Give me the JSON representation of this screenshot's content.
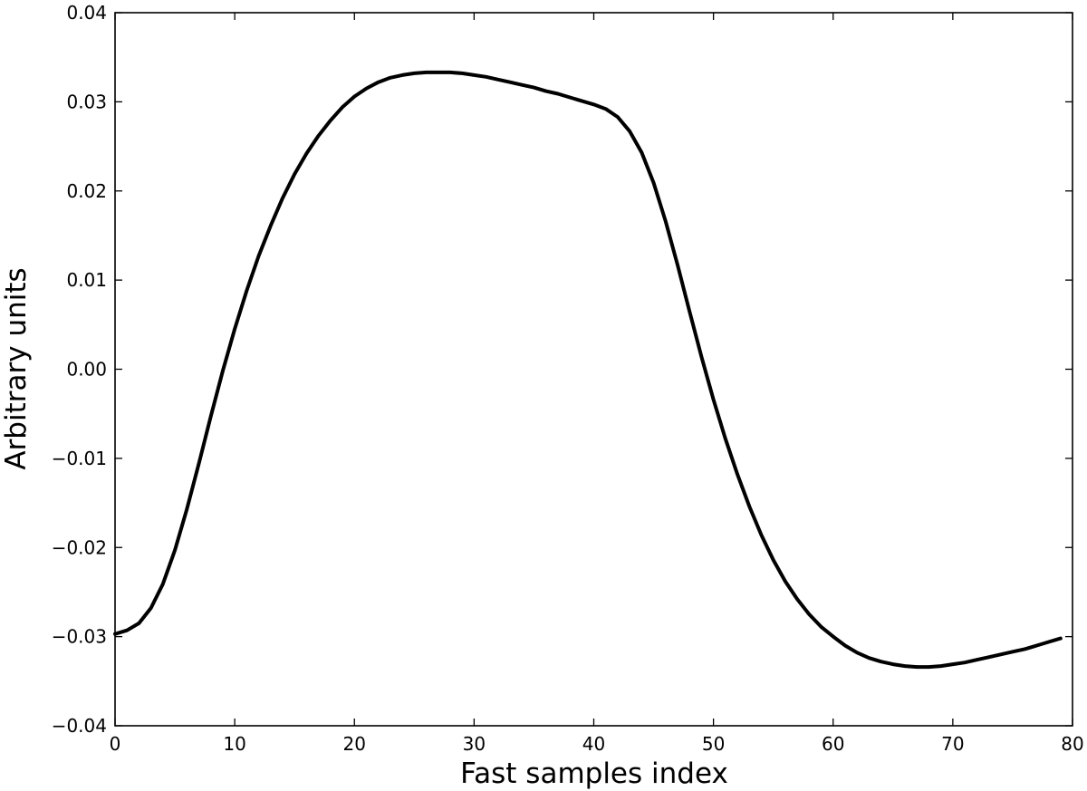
{
  "chart_data": {
    "type": "line",
    "title": "",
    "xlabel": "Fast samples index",
    "ylabel": "Arbitrary units",
    "xlim": [
      0,
      80
    ],
    "ylim": [
      -0.04,
      0.04
    ],
    "xticks": [
      "0",
      "10",
      "20",
      "30",
      "40",
      "50",
      "60",
      "70",
      "80"
    ],
    "yticks": [
      "−0.04",
      "−0.03",
      "−0.02",
      "−0.01",
      "0.00",
      "0.01",
      "0.02",
      "0.03",
      "0.04"
    ],
    "grid": false,
    "legend": "none",
    "series": [
      {
        "color": "#000000",
        "x": [
          0,
          1,
          2,
          3,
          4,
          5,
          6,
          7,
          8,
          9,
          10,
          11,
          12,
          13,
          14,
          15,
          16,
          17,
          18,
          19,
          20,
          21,
          22,
          23,
          24,
          25,
          26,
          27,
          28,
          29,
          30,
          31,
          32,
          33,
          34,
          35,
          36,
          37,
          38,
          39,
          40,
          41,
          42,
          43,
          44,
          45,
          46,
          47,
          48,
          49,
          50,
          51,
          52,
          53,
          54,
          55,
          56,
          57,
          58,
          59,
          60,
          61,
          62,
          63,
          64,
          65,
          66,
          67,
          68,
          69,
          70,
          71,
          72,
          73,
          74,
          75,
          76,
          77,
          78,
          79
        ],
        "y": [
          -0.0297,
          -0.0293,
          -0.0285,
          -0.0268,
          -0.0241,
          -0.0203,
          -0.0157,
          -0.0106,
          -0.0053,
          -0.0002,
          0.0045,
          0.0088,
          0.0127,
          0.0161,
          0.0192,
          0.0219,
          0.0242,
          0.0262,
          0.0279,
          0.0294,
          0.0306,
          0.0315,
          0.0322,
          0.0327,
          0.033,
          0.0332,
          0.0333,
          0.0333,
          0.0333,
          0.0332,
          0.033,
          0.0328,
          0.0325,
          0.0322,
          0.0319,
          0.0316,
          0.0312,
          0.0309,
          0.0305,
          0.0301,
          0.0297,
          0.0292,
          0.0283,
          0.0267,
          0.0243,
          0.0209,
          0.0166,
          0.0117,
          0.0065,
          0.0014,
          -0.0034,
          -0.0078,
          -0.0118,
          -0.0154,
          -0.0186,
          -0.0214,
          -0.0238,
          -0.0258,
          -0.0275,
          -0.0289,
          -0.03,
          -0.031,
          -0.0318,
          -0.0324,
          -0.0328,
          -0.0331,
          -0.0333,
          -0.0334,
          -0.0334,
          -0.0333,
          -0.0331,
          -0.0329,
          -0.0326,
          -0.0323,
          -0.032,
          -0.0317,
          -0.0314,
          -0.031,
          -0.0306,
          -0.0302
        ]
      }
    ]
  }
}
